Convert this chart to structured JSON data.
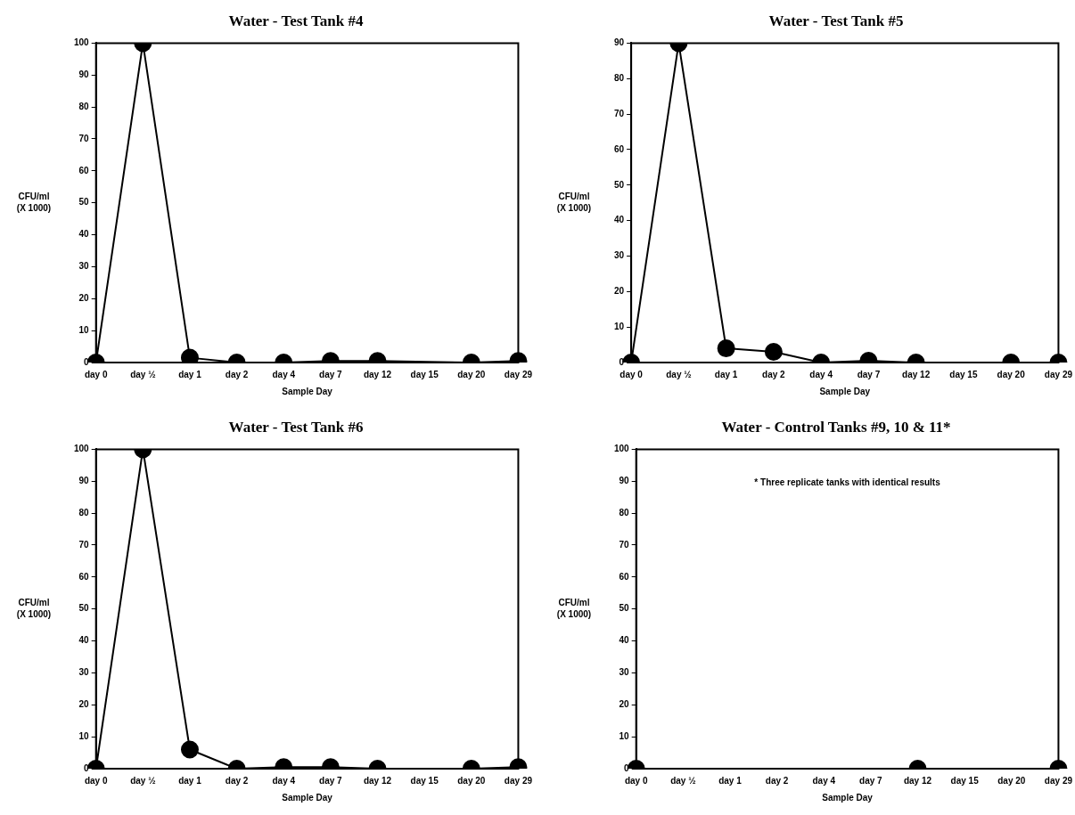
{
  "chart_data": [
    {
      "type": "line",
      "title": "Water - Test Tank #4",
      "xlabel": "Sample Day",
      "ylabel": "CFU/ml\n(X 1000)",
      "categories": [
        "day 0",
        "day ½",
        "day 1",
        "day 2",
        "day 4",
        "day 7",
        "day 12",
        "day 15",
        "day 20",
        "day 29"
      ],
      "values": [
        0,
        100,
        1.5,
        0,
        0,
        0.5,
        0.5,
        null,
        0,
        0.5
      ],
      "color": "#000000",
      "ylim": [
        0,
        100
      ],
      "yticks": [
        0,
        10,
        20,
        30,
        40,
        50,
        60,
        70,
        80,
        90,
        100
      ],
      "grid": false,
      "legend": false,
      "marker": "circle",
      "line_style": "solid"
    },
    {
      "type": "line",
      "title": "Water - Test Tank #5",
      "xlabel": "Sample Day",
      "ylabel": "CFU/ml\n(X 1000)",
      "categories": [
        "day 0",
        "day ½",
        "day 1",
        "day 2",
        "day 4",
        "day 7",
        "day 12",
        "day 15",
        "day 20",
        "day 29"
      ],
      "values": [
        0,
        90,
        4,
        3,
        0,
        0.5,
        0,
        null,
        0,
        0
      ],
      "color": "#000000",
      "ylim": [
        0,
        90
      ],
      "yticks": [
        0,
        10,
        20,
        30,
        40,
        50,
        60,
        70,
        80,
        90
      ],
      "grid": false,
      "legend": false,
      "marker": "circle",
      "line_style": "solid"
    },
    {
      "type": "line",
      "title": "Water - Test Tank #6",
      "xlabel": "Sample Day",
      "ylabel": "CFU/ml\n(X 1000)",
      "categories": [
        "day 0",
        "day ½",
        "day 1",
        "day 2",
        "day 4",
        "day 7",
        "day 12",
        "day 15",
        "day 20",
        "day 29"
      ],
      "values": [
        0,
        100,
        6,
        0,
        0.5,
        0.5,
        0,
        null,
        0,
        0.5
      ],
      "color": "#000000",
      "ylim": [
        0,
        100
      ],
      "yticks": [
        0,
        10,
        20,
        30,
        40,
        50,
        60,
        70,
        80,
        90,
        100
      ],
      "grid": false,
      "legend": false,
      "marker": "circle",
      "line_style": "solid"
    },
    {
      "type": "line",
      "title": "Water - Control Tanks #9, 10 & 11*",
      "xlabel": "Sample Day",
      "ylabel": "CFU/ml\n(X 1000)",
      "categories": [
        "day 0",
        "day ½",
        "day 1",
        "day 2",
        "day 4",
        "day 7",
        "day 12",
        "day 15",
        "day 20",
        "day 29"
      ],
      "values": [
        0,
        null,
        null,
        null,
        null,
        null,
        0,
        null,
        null,
        0
      ],
      "color": "#000000",
      "ylim": [
        0,
        100
      ],
      "yticks": [
        0,
        10,
        20,
        30,
        40,
        50,
        60,
        70,
        80,
        90,
        100
      ],
      "grid": false,
      "legend": false,
      "marker": "circle",
      "line_style": "solid",
      "annotations": [
        "* Three replicate tanks with identical results"
      ]
    }
  ]
}
